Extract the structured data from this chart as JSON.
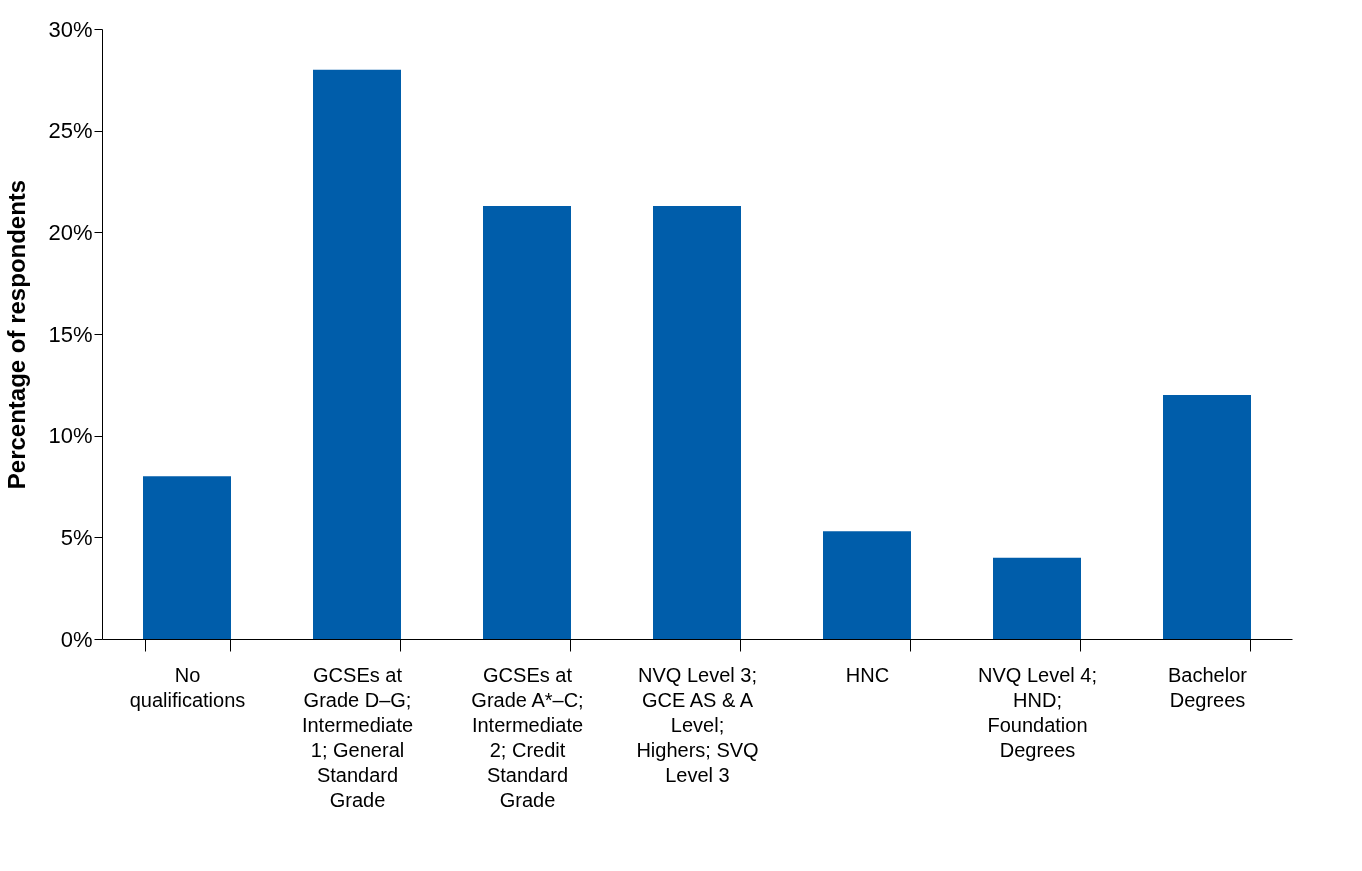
{
  "chart_data": {
    "type": "bar",
    "ylabel": "Percentage of respondents",
    "categories": [
      "No qualifications",
      "GCSEs at Grade D–G; Intermediate 1; General Standard Grade",
      "GCSEs at Grade A*–C; Intermediate 2; Credit Standard Grade",
      "NVQ Level 3; GCE AS & A Level; Highers; SVQ Level 3",
      "HNC",
      "NVQ Level 4; HND; Foundation Degrees",
      "Bachelor Degrees"
    ],
    "values": [
      8,
      28,
      21.3,
      21.3,
      5.3,
      4,
      12
    ],
    "color": "#005daa",
    "ylim": [
      0,
      30
    ],
    "yticks": [
      {
        "value": 0,
        "label": "0%"
      },
      {
        "value": 5,
        "label": "5%"
      },
      {
        "value": 10,
        "label": "10%"
      },
      {
        "value": 15,
        "label": "15%"
      },
      {
        "value": 20,
        "label": "20%"
      },
      {
        "value": 25,
        "label": "25%"
      },
      {
        "value": 30,
        "label": "30%"
      }
    ],
    "grid": false
  }
}
